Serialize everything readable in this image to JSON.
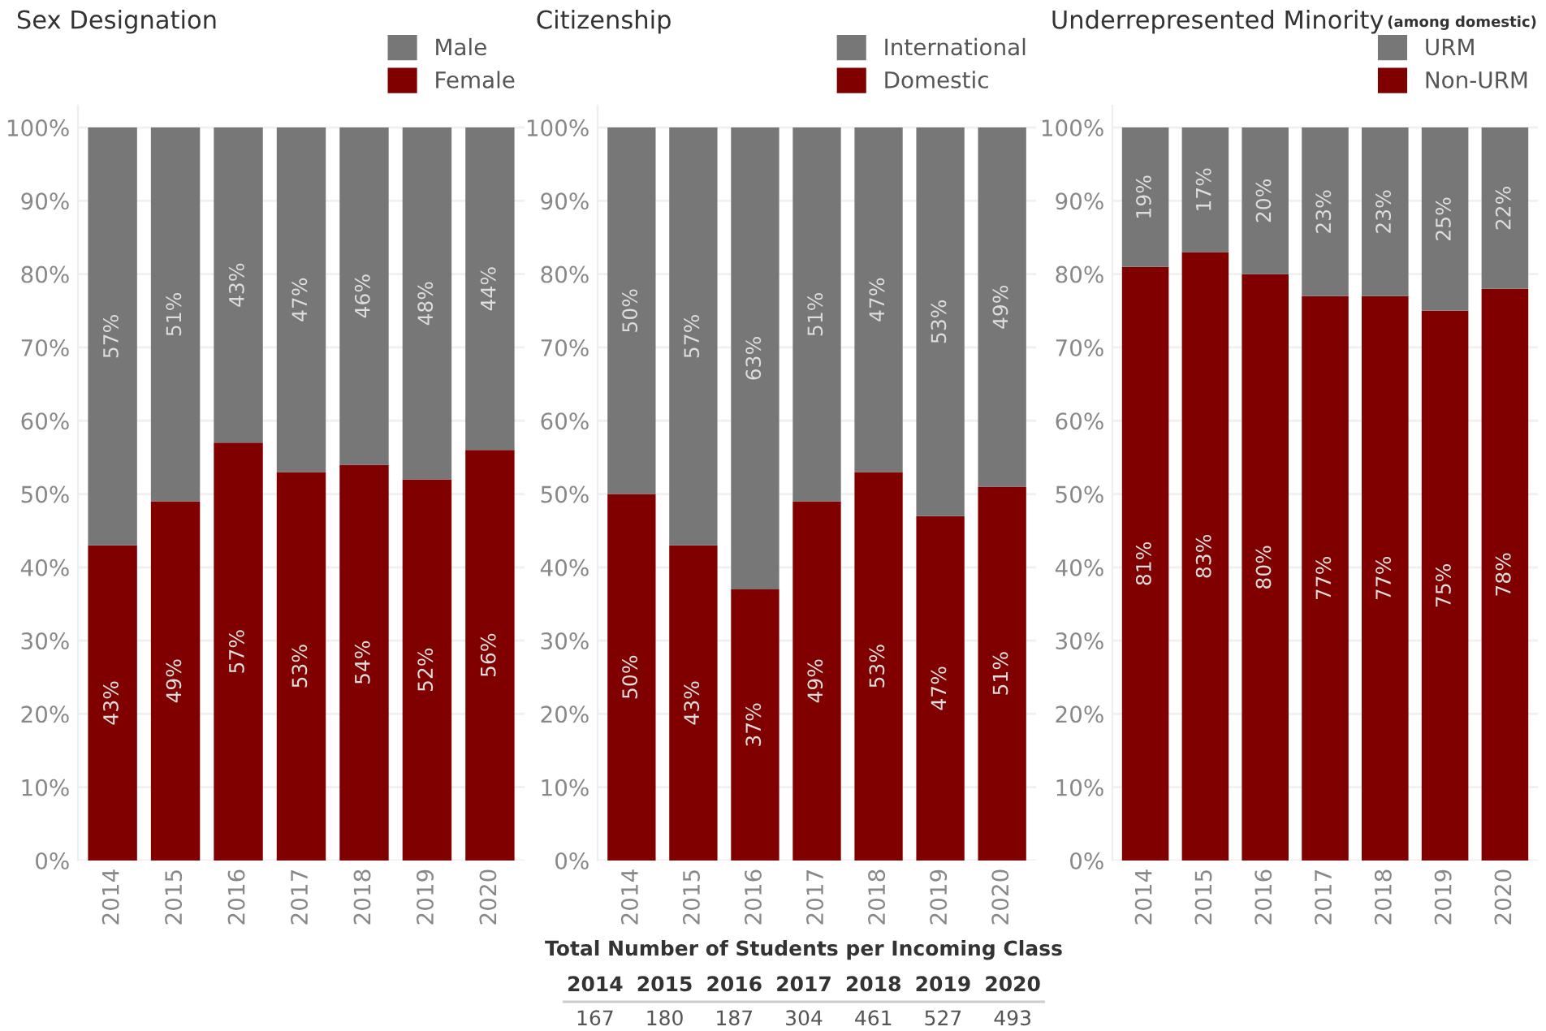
{
  "chart_data": [
    {
      "type": "bar",
      "title": "Sex Designation",
      "stacked": true,
      "categories": [
        "2014",
        "2015",
        "2016",
        "2017",
        "2018",
        "2019",
        "2020"
      ],
      "series": [
        {
          "name": "Female",
          "color": "#800000",
          "values": [
            43,
            49,
            57,
            53,
            54,
            52,
            56
          ],
          "value_labels": [
            "43%",
            "49%",
            "57%",
            "53%",
            "54%",
            "52%",
            "56%"
          ]
        },
        {
          "name": "Male",
          "color": "#777777",
          "values": [
            57,
            51,
            43,
            47,
            46,
            48,
            44
          ],
          "value_labels": [
            "57%",
            "51%",
            "43%",
            "47%",
            "46%",
            "48%",
            "44%"
          ]
        }
      ],
      "ylim": [
        0,
        103
      ],
      "yticks": [
        {
          "value": 0,
          "label": "0%"
        },
        {
          "value": 10,
          "label": "10%"
        },
        {
          "value": 20,
          "label": "20%"
        },
        {
          "value": 30,
          "label": "30%"
        },
        {
          "value": 40,
          "label": "40%"
        },
        {
          "value": 50,
          "label": "50%"
        },
        {
          "value": 60,
          "label": "60%"
        },
        {
          "value": 70,
          "label": "70%"
        },
        {
          "value": 80,
          "label": "80%"
        },
        {
          "value": 90,
          "label": "90%"
        },
        {
          "value": 100,
          "label": "100%"
        }
      ],
      "grid": "y",
      "legend": "top right"
    },
    {
      "type": "bar",
      "title": "Citizenship",
      "stacked": true,
      "categories": [
        "2014",
        "2015",
        "2016",
        "2017",
        "2018",
        "2019",
        "2020"
      ],
      "series": [
        {
          "name": "Domestic",
          "color": "#800000",
          "values": [
            50,
            43,
            37,
            49,
            53,
            47,
            51
          ],
          "value_labels": [
            "50%",
            "43%",
            "37%",
            "49%",
            "53%",
            "47%",
            "51%"
          ]
        },
        {
          "name": "International",
          "color": "#777777",
          "values": [
            50,
            57,
            63,
            51,
            47,
            53,
            49
          ],
          "value_labels": [
            "50%",
            "57%",
            "63%",
            "51%",
            "47%",
            "53%",
            "49%"
          ]
        }
      ],
      "ylim": [
        0,
        103
      ],
      "yticks": [
        {
          "value": 0,
          "label": "0%"
        },
        {
          "value": 10,
          "label": "10%"
        },
        {
          "value": 20,
          "label": "20%"
        },
        {
          "value": 30,
          "label": "30%"
        },
        {
          "value": 40,
          "label": "40%"
        },
        {
          "value": 50,
          "label": "50%"
        },
        {
          "value": 60,
          "label": "60%"
        },
        {
          "value": 70,
          "label": "70%"
        },
        {
          "value": 80,
          "label": "80%"
        },
        {
          "value": 90,
          "label": "90%"
        },
        {
          "value": 100,
          "label": "100%"
        }
      ],
      "grid": "y",
      "legend": "top right",
      "annotations": [
        "Total Number of Students per Incoming Class",
        "2014",
        "2015",
        "2016",
        "2017",
        "2018",
        "2019",
        "2020",
        "167",
        "180",
        "187",
        "304",
        "461",
        "527",
        "493"
      ]
    },
    {
      "type": "bar",
      "title": "Underrepresented Minority",
      "subtitle": "(among domestic)",
      "stacked": true,
      "categories": [
        "2014",
        "2015",
        "2016",
        "2017",
        "2018",
        "2019",
        "2020"
      ],
      "series": [
        {
          "name": "Non-URM",
          "color": "#800000",
          "values": [
            81,
            83,
            80,
            77,
            77,
            75,
            78
          ],
          "value_labels": [
            "81%",
            "83%",
            "80%",
            "77%",
            "77%",
            "75%",
            "78%"
          ]
        },
        {
          "name": "URM",
          "color": "#777777",
          "values": [
            19,
            17,
            20,
            23,
            23,
            25,
            22
          ],
          "value_labels": [
            "19%",
            "17%",
            "20%",
            "23%",
            "23%",
            "25%",
            "22%"
          ]
        }
      ],
      "ylim": [
        0,
        103
      ],
      "yticks": [
        {
          "value": 0,
          "label": "0%"
        },
        {
          "value": 10,
          "label": "10%"
        },
        {
          "value": 20,
          "label": "20%"
        },
        {
          "value": 30,
          "label": "30%"
        },
        {
          "value": 40,
          "label": "40%"
        },
        {
          "value": 50,
          "label": "50%"
        },
        {
          "value": 60,
          "label": "60%"
        },
        {
          "value": 70,
          "label": "70%"
        },
        {
          "value": 80,
          "label": "80%"
        },
        {
          "value": 90,
          "label": "90%"
        },
        {
          "value": 100,
          "label": "100%"
        }
      ],
      "grid": "y",
      "legend": "top right"
    }
  ]
}
